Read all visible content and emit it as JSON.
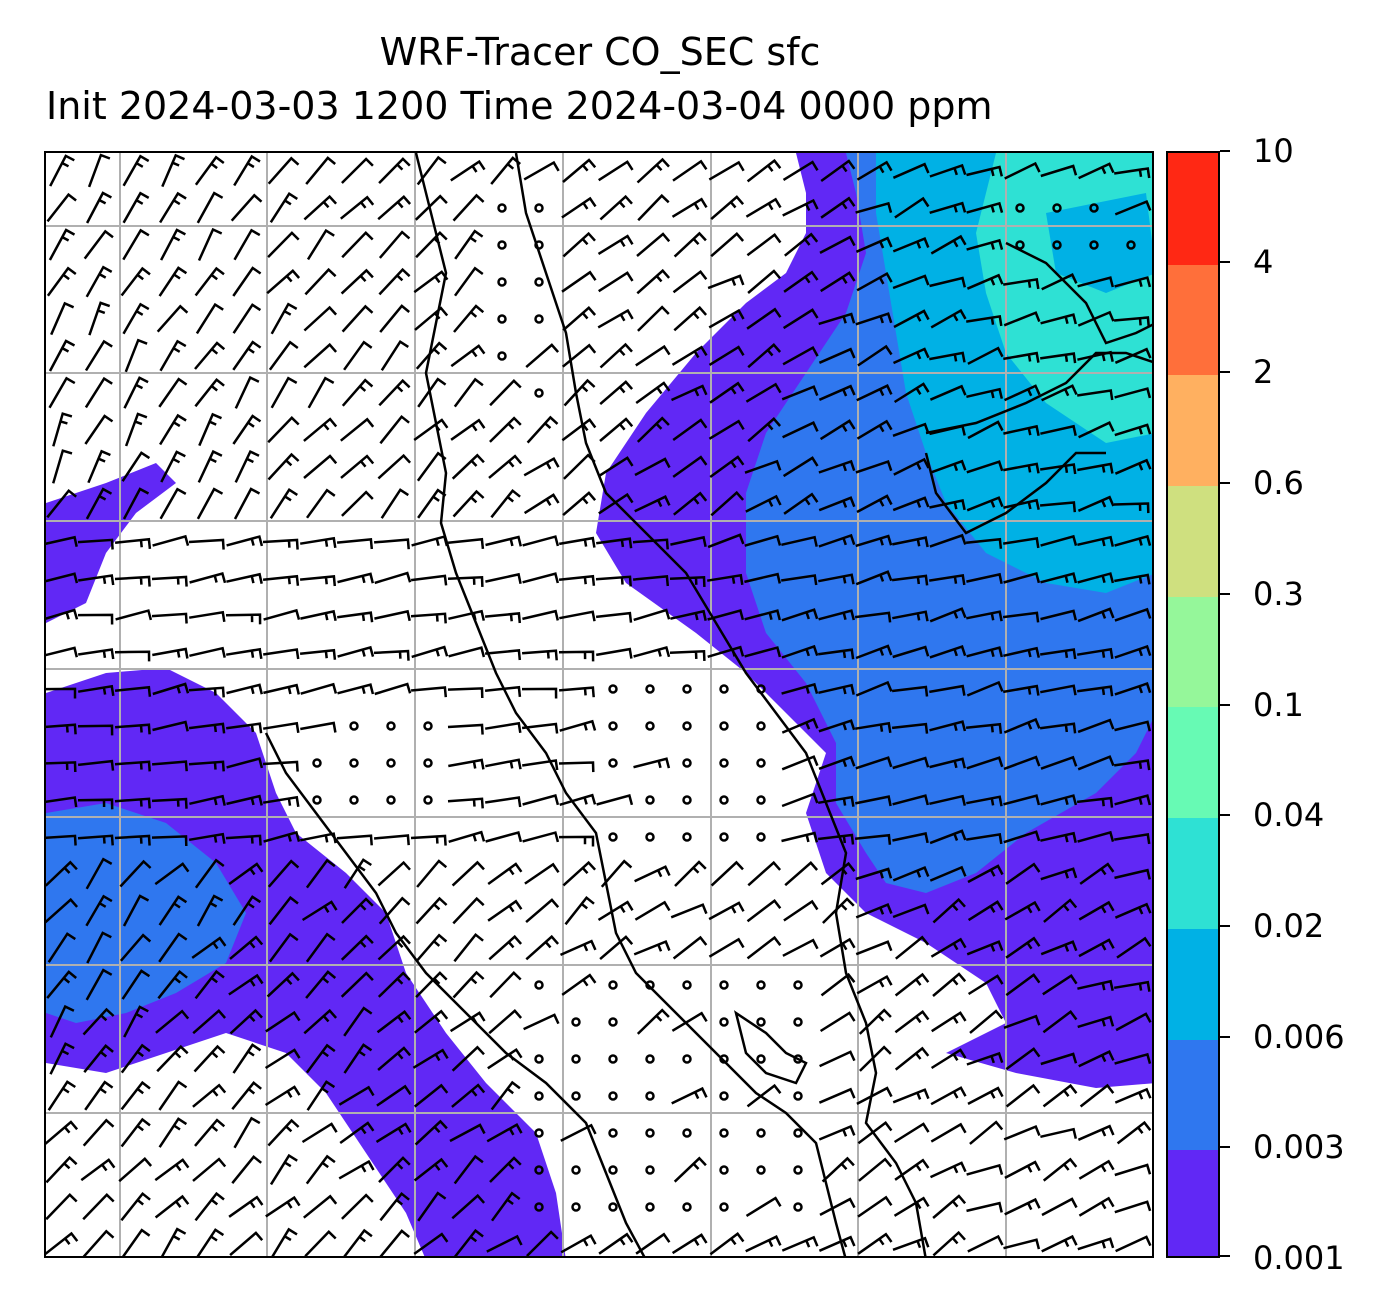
{
  "title": {
    "line1": "WRF-Tracer CO_SEC sfc",
    "line2": "Init 2024-03-03 1200 Time 2024-03-04 0000 ppm"
  },
  "map": {
    "type": "filled-contour-with-wind-barbs",
    "grid": true,
    "grid_color": "#b0b0b0",
    "coastline_color": "#000000",
    "barb_color": "#000000",
    "icons": [
      "wind-barb-icon",
      "calm-wind-circle-icon"
    ]
  },
  "colorbar": {
    "levels": [
      "0.001",
      "0.003",
      "0.006",
      "0.02",
      "0.04",
      "0.1",
      "0.3",
      "0.6",
      "2",
      "4",
      "10"
    ],
    "colors": [
      "#6128f5",
      "#2f77ef",
      "#00b1e5",
      "#2ee1d4",
      "#67fab4",
      "#95f79a",
      "#cfe07f",
      "#ffb060",
      "#ff6f3a",
      "#ff2814"
    ],
    "orientation": "vertical",
    "placement": "right"
  }
}
